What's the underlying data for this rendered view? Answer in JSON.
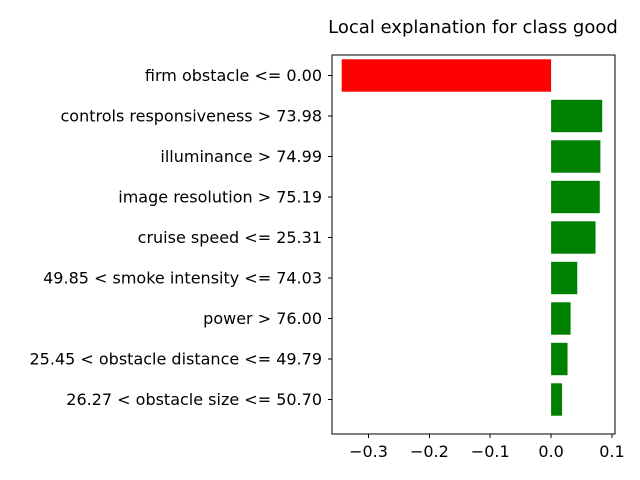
{
  "chart_data": {
    "type": "bar",
    "orientation": "horizontal",
    "title": "Local explanation for class good",
    "xlabel": "",
    "ylabel": "",
    "categories": [
      "firm obstacle <= 0.00",
      "controls responsiveness > 73.98",
      "illuminance > 74.99",
      "image resolution > 75.19",
      "cruise speed <= 25.31",
      "49.85 < smoke intensity <= 74.03",
      "power > 76.00",
      "25.45 < obstacle distance <= 49.79",
      "26.27 < obstacle size <= 50.70"
    ],
    "values": [
      -0.344,
      0.084,
      0.081,
      0.08,
      0.073,
      0.043,
      0.032,
      0.027,
      0.018
    ],
    "xlim": [
      -0.36,
      0.105
    ],
    "xticks": [
      -0.3,
      -0.2,
      -0.1,
      0.0,
      0.1
    ],
    "xtick_labels": [
      "−0.3",
      "−0.2",
      "−0.1",
      "0.0",
      "0.1"
    ],
    "grid": false,
    "colors": {
      "positive": "#008000",
      "negative": "#ff0000"
    }
  }
}
